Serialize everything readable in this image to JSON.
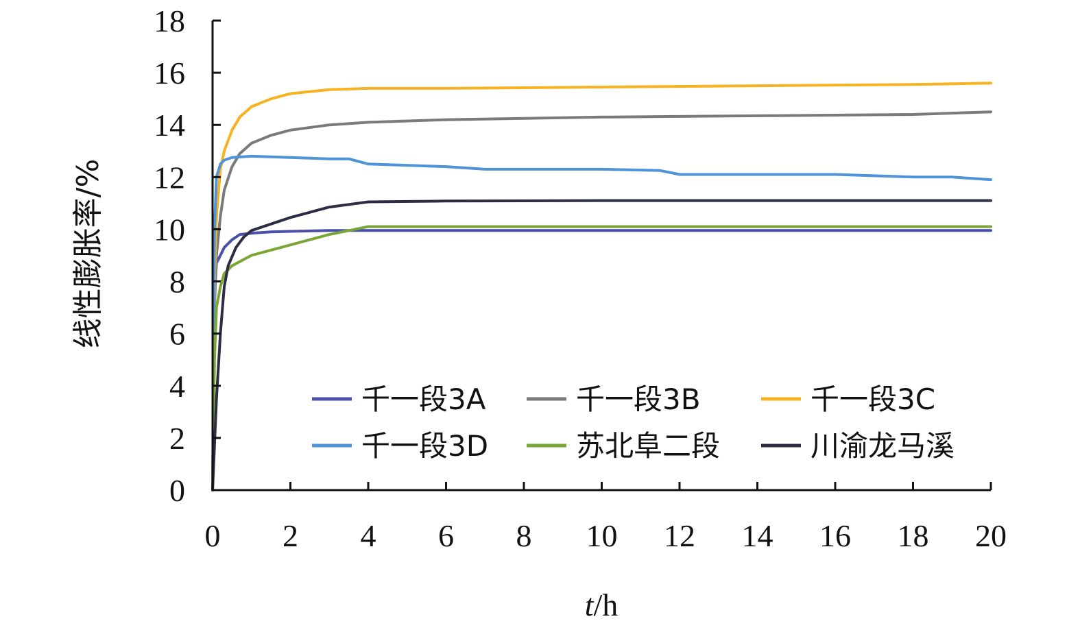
{
  "chart_data": {
    "type": "line",
    "xlabel_italic": "t",
    "xlabel_rest": "/h",
    "ylabel": "线性膨胀率/%",
    "xlim": [
      0,
      20
    ],
    "ylim": [
      0,
      18
    ],
    "x_ticks": [
      0,
      2,
      4,
      6,
      8,
      10,
      12,
      14,
      16,
      18,
      20
    ],
    "y_ticks": [
      0,
      2,
      4,
      6,
      8,
      10,
      12,
      14,
      16,
      18
    ],
    "grid": false,
    "legend_position": "bottom-right inside plot, 3 columns",
    "series": [
      {
        "name": "千一段3A",
        "color": "#4a4fa8",
        "x": [
          0,
          0.05,
          0.1,
          0.2,
          0.3,
          0.5,
          0.7,
          1.0,
          1.5,
          2.0,
          3.0,
          4.0,
          6.0,
          10.0,
          14.0,
          18.0,
          20.0
        ],
        "y": [
          0,
          7.5,
          8.7,
          9.0,
          9.3,
          9.6,
          9.8,
          9.85,
          9.9,
          9.92,
          9.95,
          9.95,
          9.95,
          9.95,
          9.95,
          9.95,
          9.95
        ]
      },
      {
        "name": "千一段3B",
        "color": "#7a7a7a",
        "x": [
          0,
          0.05,
          0.1,
          0.2,
          0.3,
          0.5,
          0.7,
          1.0,
          1.5,
          2.0,
          3.0,
          4.0,
          6.0,
          10.0,
          14.0,
          18.0,
          20.0
        ],
        "y": [
          0,
          7.0,
          9.0,
          10.5,
          11.5,
          12.4,
          12.9,
          13.3,
          13.6,
          13.8,
          14.0,
          14.1,
          14.2,
          14.3,
          14.35,
          14.4,
          14.5
        ]
      },
      {
        "name": "千一段3C",
        "color": "#f5b324",
        "x": [
          0,
          0.05,
          0.1,
          0.2,
          0.3,
          0.5,
          0.7,
          1.0,
          1.5,
          2.0,
          3.0,
          4.0,
          6.0,
          10.0,
          14.0,
          18.0,
          20.0
        ],
        "y": [
          0,
          8.0,
          10.5,
          12.3,
          13.0,
          13.8,
          14.3,
          14.7,
          15.0,
          15.2,
          15.35,
          15.4,
          15.4,
          15.45,
          15.5,
          15.55,
          15.6
        ]
      },
      {
        "name": "千一段3D",
        "color": "#4f94d8",
        "x": [
          0,
          0.05,
          0.1,
          0.2,
          0.3,
          0.5,
          1.0,
          2.0,
          3.0,
          3.5,
          4.0,
          6.0,
          7.0,
          10.0,
          11.5,
          12.0,
          14.0,
          16.0,
          17.0,
          18.0,
          19.0,
          20.0
        ],
        "y": [
          0,
          10.0,
          12.0,
          12.5,
          12.65,
          12.75,
          12.8,
          12.75,
          12.7,
          12.7,
          12.5,
          12.4,
          12.3,
          12.3,
          12.25,
          12.1,
          12.1,
          12.1,
          12.05,
          12.0,
          12.0,
          11.9
        ]
      },
      {
        "name": "苏北阜二段",
        "color": "#7aa638",
        "x": [
          0,
          0.05,
          0.1,
          0.2,
          0.3,
          0.5,
          1.0,
          1.5,
          2.0,
          3.0,
          4.0,
          6.0,
          10.0,
          14.0,
          18.0,
          20.0
        ],
        "y": [
          0,
          5.0,
          7.0,
          7.8,
          8.3,
          8.6,
          9.0,
          9.2,
          9.4,
          9.8,
          10.1,
          10.1,
          10.1,
          10.1,
          10.1,
          10.1
        ]
      },
      {
        "name": "川渝龙马溪",
        "color": "#2c2c44",
        "x": [
          0,
          0.1,
          0.2,
          0.3,
          0.4,
          0.6,
          0.8,
          1.0,
          1.5,
          2.0,
          2.5,
          3.0,
          3.5,
          4.0,
          6.0,
          10.0,
          14.0,
          18.0,
          20.0
        ],
        "y": [
          0,
          3.5,
          6.0,
          7.8,
          8.6,
          9.3,
          9.7,
          9.95,
          10.2,
          10.45,
          10.65,
          10.85,
          10.95,
          11.05,
          11.08,
          11.1,
          11.1,
          11.1,
          11.1
        ]
      }
    ]
  }
}
